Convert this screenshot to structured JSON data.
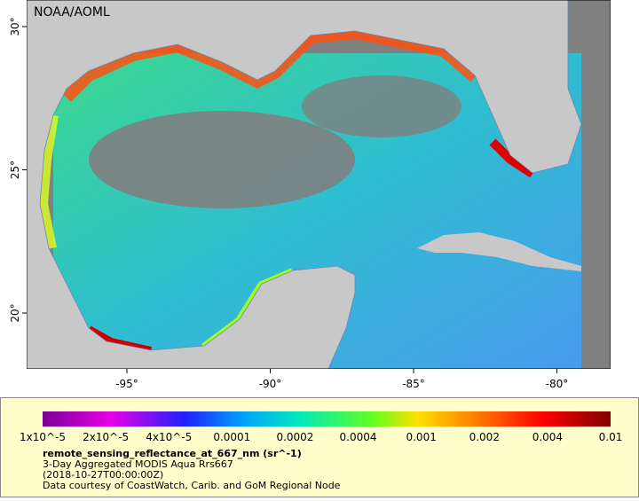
{
  "map": {
    "watermark": "NOAA/AOML",
    "lon_ticks": [
      "-95°",
      "-90°",
      "-85°",
      "-80°"
    ],
    "lat_ticks": [
      "20°",
      "25°",
      "30°"
    ]
  },
  "colorbar": {
    "labels": [
      "1x10^-5",
      "2x10^-5",
      "4x10^-5",
      "0.0001",
      "0.0002",
      "0.0004",
      "0.001",
      "0.002",
      "0.004",
      "0.01"
    ]
  },
  "caption": {
    "variable": "remote_sensing_reflectance_at_667_nm (sr^-1)",
    "product": "3-Day Aggregated MODIS Aqua Rrs667",
    "time": "(2018-10-27T00:00:00Z)",
    "credit": "Data courtesy of CoastWatch, Carib. and GoM Regional Node"
  }
}
